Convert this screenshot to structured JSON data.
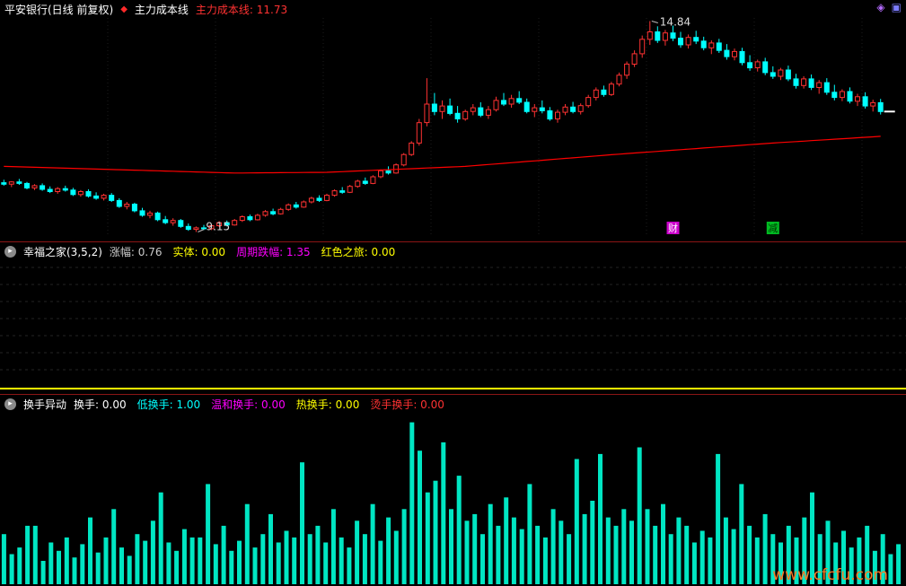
{
  "icons": {
    "line_diamond": "◆",
    "panel_arrow": "▸",
    "picker": "◈",
    "window": "▣"
  },
  "colors": {
    "up": "#ff3232",
    "down": "#00ffff",
    "cost_line": "#ff0000",
    "bars": "#00e6c3",
    "baseline": "#ffff00",
    "separator": "#8b1515",
    "watermark": "#ff7722"
  },
  "main_header": {
    "title": "平安银行(日线 前复权)",
    "indicator_name": "主力成本线",
    "line_value": "主力成本线: 11.73"
  },
  "mid_header": {
    "name": "幸福之家(3,5,2)",
    "fields": [
      {
        "text": "涨幅: 0.76",
        "color": "#cccccc"
      },
      {
        "text": "实体: 0.00",
        "color": "#ffff00"
      },
      {
        "text": "周期跌幅: 1.35",
        "color": "#ff00ff"
      },
      {
        "text": "红色之旅: 0.00",
        "color": "#ffff00"
      }
    ]
  },
  "bot_header": {
    "name": "换手异动",
    "fields": [
      {
        "text": "换手: 0.00",
        "color": "#ffffff"
      },
      {
        "text": "低换手: 1.00",
        "color": "#00ffff"
      },
      {
        "text": "温和换手: 0.00",
        "color": "#ff00ff"
      },
      {
        "text": "热换手: 0.00",
        "color": "#ffff00"
      },
      {
        "text": "烫手换手: 0.00",
        "color": "#ff3232"
      }
    ]
  },
  "watermark": "www.cfcfu.com",
  "chart_data": [
    {
      "type": "candlestick",
      "title": "平安银行 日线 前复权",
      "high_mark": 14.84,
      "low_mark": 9.15,
      "cost_line_value": 11.73,
      "ohlc": [
        [
          10.48,
          10.56,
          10.4,
          10.44
        ],
        [
          10.44,
          10.52,
          10.36,
          10.5
        ],
        [
          10.5,
          10.58,
          10.42,
          10.46
        ],
        [
          10.46,
          10.5,
          10.3,
          10.34
        ],
        [
          10.34,
          10.44,
          10.28,
          10.4
        ],
        [
          10.4,
          10.46,
          10.26,
          10.3
        ],
        [
          10.3,
          10.38,
          10.2,
          10.24
        ],
        [
          10.24,
          10.36,
          10.18,
          10.32
        ],
        [
          10.32,
          10.4,
          10.24,
          10.28
        ],
        [
          10.28,
          10.34,
          10.12,
          10.16
        ],
        [
          10.16,
          10.28,
          10.1,
          10.24
        ],
        [
          10.24,
          10.3,
          10.08,
          10.12
        ],
        [
          10.12,
          10.22,
          10.02,
          10.06
        ],
        [
          10.06,
          10.18,
          10.0,
          10.14
        ],
        [
          10.14,
          10.2,
          9.96,
          10.0
        ],
        [
          10.0,
          10.06,
          9.8,
          9.84
        ],
        [
          9.84,
          9.96,
          9.76,
          9.9
        ],
        [
          9.9,
          9.94,
          9.68,
          9.72
        ],
        [
          9.72,
          9.8,
          9.56,
          9.6
        ],
        [
          9.6,
          9.72,
          9.52,
          9.66
        ],
        [
          9.66,
          9.7,
          9.44,
          9.48
        ],
        [
          9.48,
          9.58,
          9.36,
          9.4
        ],
        [
          9.4,
          9.52,
          9.32,
          9.46
        ],
        [
          9.46,
          9.5,
          9.26,
          9.3
        ],
        [
          9.3,
          9.38,
          9.18,
          9.22
        ],
        [
          9.22,
          9.3,
          9.15,
          9.26
        ],
        [
          9.26,
          9.34,
          9.2,
          9.24
        ],
        [
          9.24,
          9.36,
          9.2,
          9.32
        ],
        [
          9.32,
          9.44,
          9.28,
          9.4
        ],
        [
          9.4,
          9.46,
          9.3,
          9.34
        ],
        [
          9.34,
          9.5,
          9.32,
          9.46
        ],
        [
          9.46,
          9.6,
          9.42,
          9.56
        ],
        [
          9.56,
          9.62,
          9.44,
          9.48
        ],
        [
          9.48,
          9.64,
          9.46,
          9.6
        ],
        [
          9.6,
          9.74,
          9.56,
          9.7
        ],
        [
          9.7,
          9.78,
          9.6,
          9.64
        ],
        [
          9.64,
          9.8,
          9.62,
          9.76
        ],
        [
          9.76,
          9.92,
          9.72,
          9.88
        ],
        [
          9.88,
          9.96,
          9.78,
          9.82
        ],
        [
          9.82,
          10.0,
          9.8,
          9.96
        ],
        [
          9.96,
          10.1,
          9.92,
          10.06
        ],
        [
          10.06,
          10.14,
          9.96,
          10.0
        ],
        [
          10.0,
          10.18,
          9.98,
          10.14
        ],
        [
          10.14,
          10.3,
          10.1,
          10.26
        ],
        [
          10.26,
          10.36,
          10.18,
          10.22
        ],
        [
          10.22,
          10.42,
          10.2,
          10.38
        ],
        [
          10.38,
          10.56,
          10.34,
          10.52
        ],
        [
          10.52,
          10.62,
          10.42,
          10.46
        ],
        [
          10.46,
          10.68,
          10.44,
          10.64
        ],
        [
          10.64,
          10.84,
          10.6,
          10.8
        ],
        [
          10.8,
          10.92,
          10.7,
          10.74
        ],
        [
          10.74,
          11.0,
          10.72,
          10.96
        ],
        [
          10.96,
          11.28,
          10.92,
          11.24
        ],
        [
          11.24,
          11.6,
          11.2,
          11.55
        ],
        [
          11.55,
          12.2,
          11.48,
          12.1
        ],
        [
          12.1,
          13.3,
          12.0,
          12.6
        ],
        [
          12.6,
          12.9,
          12.3,
          12.4
        ],
        [
          12.4,
          12.7,
          12.2,
          12.55
        ],
        [
          12.55,
          12.75,
          12.3,
          12.35
        ],
        [
          12.35,
          12.55,
          12.1,
          12.2
        ],
        [
          12.2,
          12.45,
          12.15,
          12.4
        ],
        [
          12.4,
          12.6,
          12.3,
          12.5
        ],
        [
          12.5,
          12.65,
          12.25,
          12.3
        ],
        [
          12.3,
          12.55,
          12.2,
          12.45
        ],
        [
          12.45,
          12.8,
          12.4,
          12.7
        ],
        [
          12.7,
          12.9,
          12.55,
          12.6
        ],
        [
          12.6,
          12.85,
          12.5,
          12.75
        ],
        [
          12.75,
          12.95,
          12.6,
          12.65
        ],
        [
          12.65,
          12.75,
          12.35,
          12.4
        ],
        [
          12.4,
          12.6,
          12.25,
          12.5
        ],
        [
          12.5,
          12.7,
          12.35,
          12.42
        ],
        [
          12.42,
          12.52,
          12.15,
          12.2
        ],
        [
          12.2,
          12.45,
          12.1,
          12.38
        ],
        [
          12.38,
          12.6,
          12.3,
          12.52
        ],
        [
          12.52,
          12.66,
          12.35,
          12.4
        ],
        [
          12.4,
          12.62,
          12.32,
          12.56
        ],
        [
          12.56,
          12.85,
          12.5,
          12.78
        ],
        [
          12.78,
          13.05,
          12.7,
          12.98
        ],
        [
          12.98,
          13.1,
          12.8,
          12.86
        ],
        [
          12.86,
          13.2,
          12.82,
          13.14
        ],
        [
          13.14,
          13.45,
          13.08,
          13.38
        ],
        [
          13.38,
          13.75,
          13.28,
          13.68
        ],
        [
          13.68,
          14.05,
          13.6,
          13.96
        ],
        [
          13.96,
          14.45,
          13.85,
          14.35
        ],
        [
          14.35,
          14.84,
          14.2,
          14.55
        ],
        [
          14.55,
          14.7,
          14.25,
          14.32
        ],
        [
          14.32,
          14.6,
          14.18,
          14.52
        ],
        [
          14.52,
          14.72,
          14.3,
          14.38
        ],
        [
          14.38,
          14.55,
          14.12,
          14.2
        ],
        [
          14.2,
          14.48,
          14.1,
          14.4
        ],
        [
          14.4,
          14.58,
          14.22,
          14.3
        ],
        [
          14.3,
          14.42,
          14.05,
          14.12
        ],
        [
          14.12,
          14.32,
          13.95,
          14.25
        ],
        [
          14.25,
          14.36,
          13.98,
          14.05
        ],
        [
          14.05,
          14.22,
          13.8,
          13.88
        ],
        [
          13.88,
          14.1,
          13.78,
          14.02
        ],
        [
          14.02,
          14.12,
          13.65,
          13.72
        ],
        [
          13.72,
          13.92,
          13.5,
          13.58
        ],
        [
          13.58,
          13.8,
          13.48,
          13.74
        ],
        [
          13.74,
          13.85,
          13.38,
          13.45
        ],
        [
          13.45,
          13.62,
          13.28,
          13.35
        ],
        [
          13.35,
          13.58,
          13.25,
          13.52
        ],
        [
          13.52,
          13.64,
          13.22,
          13.28
        ],
        [
          13.28,
          13.42,
          13.02,
          13.1
        ],
        [
          13.1,
          13.35,
          13.02,
          13.28
        ],
        [
          13.28,
          13.4,
          12.98,
          13.05
        ],
        [
          13.05,
          13.25,
          12.88,
          13.18
        ],
        [
          13.18,
          13.3,
          12.85,
          12.92
        ],
        [
          12.92,
          13.12,
          12.7,
          12.78
        ],
        [
          12.78,
          13.0,
          12.68,
          12.94
        ],
        [
          12.94,
          13.05,
          12.62,
          12.68
        ],
        [
          12.68,
          12.88,
          12.55,
          12.8
        ],
        [
          12.8,
          12.92,
          12.48,
          12.55
        ],
        [
          12.55,
          12.72,
          12.4,
          12.64
        ],
        [
          12.64,
          12.74,
          12.32,
          12.4
        ]
      ],
      "cost_line_points": [
        [
          0,
          10.92
        ],
        [
          30,
          10.74
        ],
        [
          42,
          10.76
        ],
        [
          60,
          10.92
        ],
        [
          80,
          11.25
        ],
        [
          100,
          11.55
        ],
        [
          114,
          11.73
        ]
      ],
      "cost_line_color": "#ff0000",
      "annotations": [
        {
          "label": "14.84",
          "index": 84,
          "value": 14.84,
          "pos": "high"
        },
        {
          "label": "9.15",
          "index": 25,
          "value": 9.15,
          "pos": "low"
        }
      ],
      "markers": [
        {
          "label": "财",
          "index": 87,
          "bg": "#cc00cc",
          "fg": "#ffffff"
        },
        {
          "label": "减",
          "index": 100,
          "bg": "#00bb22",
          "fg": "#003300"
        }
      ]
    },
    {
      "type": "line",
      "title": "幸福之家(3,5,2)",
      "baseline_value": 0,
      "baseline_color": "#ffff00",
      "values": []
    },
    {
      "type": "bar",
      "title": "换手异动",
      "ymax": 100,
      "color": "#00e6c3",
      "values": [
        30,
        18,
        22,
        35,
        35,
        14,
        25,
        20,
        28,
        16,
        24,
        40,
        19,
        28,
        45,
        22,
        17,
        30,
        26,
        38,
        55,
        25,
        20,
        33,
        28,
        28,
        60,
        24,
        35,
        20,
        26,
        48,
        22,
        30,
        42,
        25,
        32,
        28,
        73,
        30,
        35,
        25,
        45,
        28,
        22,
        38,
        30,
        48,
        26,
        40,
        32,
        45,
        97,
        80,
        55,
        62,
        85,
        45,
        65,
        38,
        42,
        30,
        48,
        35,
        52,
        40,
        33,
        60,
        35,
        28,
        45,
        38,
        30,
        75,
        42,
        50,
        78,
        40,
        35,
        45,
        38,
        82,
        45,
        35,
        48,
        30,
        40,
        35,
        25,
        32,
        28,
        78,
        40,
        33,
        60,
        35,
        28,
        42,
        30,
        25,
        35,
        28,
        40,
        55,
        30,
        38,
        25,
        32,
        22,
        28,
        35,
        20,
        30,
        18,
        24
      ]
    }
  ]
}
